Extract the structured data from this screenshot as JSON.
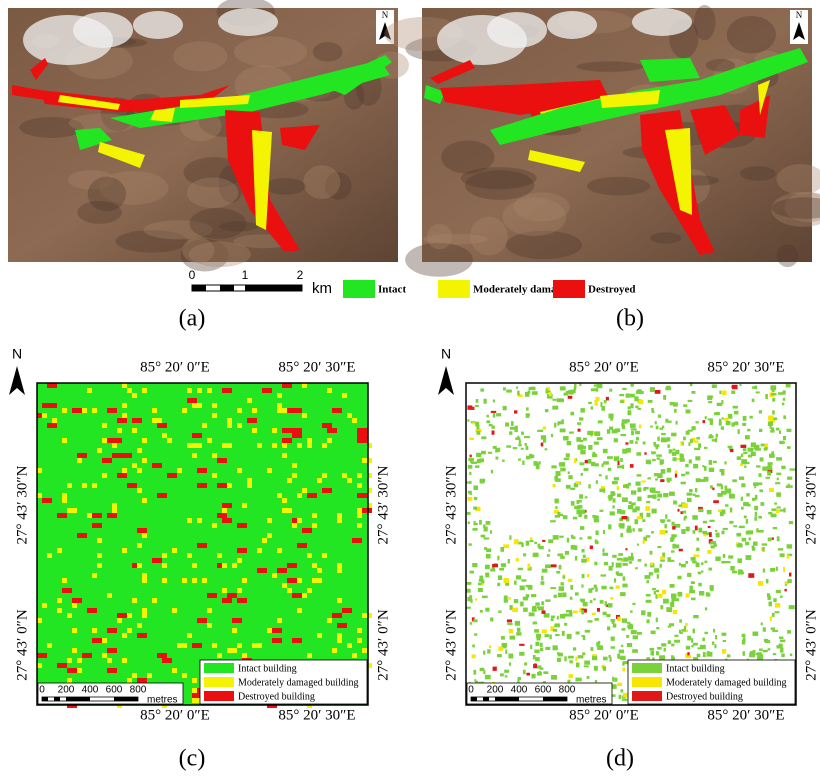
{
  "figure": {
    "top_panels": [
      {
        "caption": "(a)",
        "north": "N"
      },
      {
        "caption": "(b)",
        "north": "N"
      }
    ],
    "top_scale": {
      "ticks": [
        "0",
        "1",
        "2"
      ],
      "unit": "km"
    },
    "top_legend": [
      {
        "label": "Intact",
        "color": "#22e622"
      },
      {
        "label": "Moderately damaged",
        "color": "#f4f400"
      },
      {
        "label": "Destroyed",
        "color": "#ea1010"
      }
    ],
    "grid_panels": [
      {
        "caption": "(c)",
        "north": "N",
        "lon_labels": [
          "85° 20′ 0″E",
          "85° 20′ 30″E"
        ],
        "lat_labels": [
          "27° 43′ 30″N",
          "27° 43′ 0″N"
        ],
        "scale_ticks": [
          "0",
          "200",
          "400",
          "600",
          "800"
        ],
        "scale_unit": "metres",
        "legend": [
          {
            "label": "Intact building",
            "color": "#22e622"
          },
          {
            "label": "Moderately damaged building",
            "color": "#f4f400"
          },
          {
            "label": "Destroyed building",
            "color": "#ea1010"
          }
        ]
      },
      {
        "caption": "(d)",
        "north": "N",
        "lon_labels": [
          "85° 20′ 0″E",
          "85° 20′ 30″E"
        ],
        "lat_labels": [
          "27° 43′ 30″N",
          "27° 43′ 0″N"
        ],
        "scale_ticks": [
          "0",
          "200",
          "400",
          "600",
          "800"
        ],
        "scale_unit": "metres",
        "legend": [
          {
            "label": "Intact building",
            "color": "#7ad23a"
          },
          {
            "label": "Moderately damaged building",
            "color": "#f6e600"
          },
          {
            "label": "Destroyed building",
            "color": "#e01818"
          }
        ]
      }
    ]
  }
}
